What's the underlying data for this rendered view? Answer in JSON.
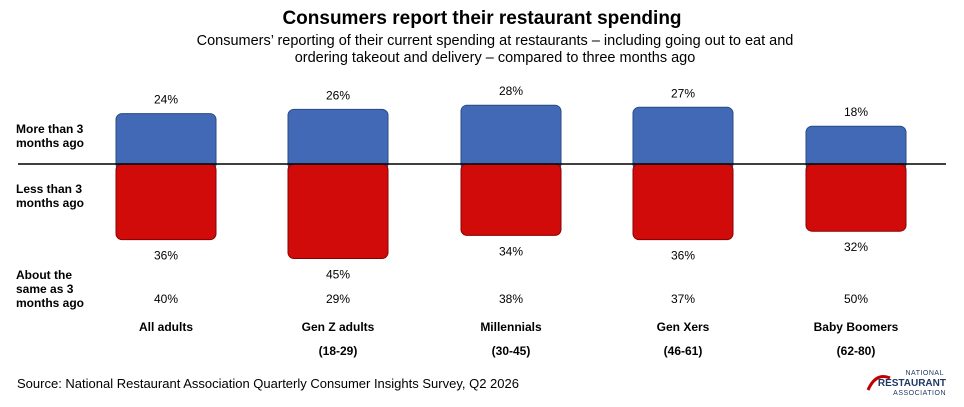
{
  "chart_data": {
    "type": "bar",
    "title": "Consumers report their restaurant spending",
    "subtitle": "Consumers’ reporting of their current spending at restaurants – including going out to eat and ordering takeout and delivery – compared to three months ago",
    "categories": [
      "All adults",
      "Gen Z adults",
      "Millennials",
      "Gen Xers",
      "Baby Boomers"
    ],
    "category_ages": [
      "",
      "(18-29)",
      "(30-45)",
      "(46-61)",
      "(62-80)"
    ],
    "series": [
      {
        "name": "More than 3 months ago",
        "values": [
          24,
          26,
          28,
          27,
          18
        ],
        "labels": [
          "24%",
          "26%",
          "28%",
          "27%",
          "18%"
        ],
        "color": "#4169b5"
      },
      {
        "name": "Less than 3 months ago",
        "values": [
          36,
          45,
          34,
          36,
          32
        ],
        "labels": [
          "36%",
          "45%",
          "34%",
          "36%",
          "32%"
        ],
        "color": "#d10a0a"
      },
      {
        "name": "About the same as 3 months ago",
        "values": [
          40,
          29,
          38,
          37,
          50
        ],
        "labels": [
          "40%",
          "29%",
          "38%",
          "37%",
          "50%"
        ]
      }
    ],
    "row_labels": [
      "More than 3 months ago",
      "Less than 3 months ago",
      "About the same as 3 months ago"
    ]
  },
  "source": "Source: National Restaurant Association Quarterly Consumer Insights Survey, Q2 2026",
  "logo": {
    "line1": "NATIONAL",
    "line2": "RESTAURANT",
    "line3": "ASSOCIATION"
  }
}
